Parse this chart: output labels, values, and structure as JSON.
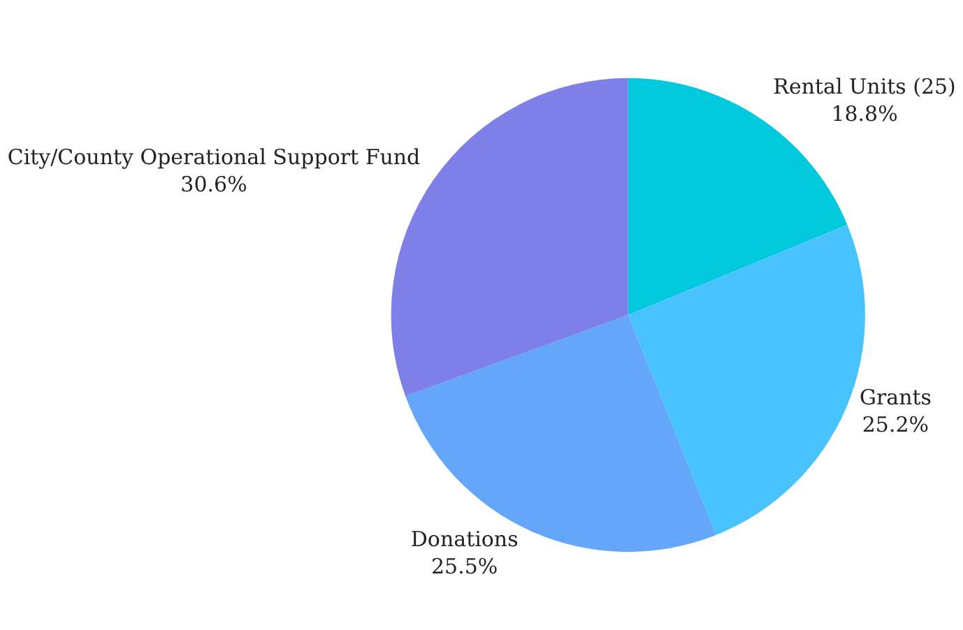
{
  "chart_data": {
    "type": "pie",
    "categories": [
      "Rental Units (25)",
      "Grants",
      "Donations",
      "City/County Operational Support Fund"
    ],
    "values": [
      18.8,
      25.2,
      25.5,
      30.6
    ],
    "value_labels": [
      "18.8%",
      "25.2%",
      "25.5%",
      "30.6%"
    ],
    "colors": [
      "#00c9de",
      "#48c3fe",
      "#63a6fa",
      "#7e80e8"
    ],
    "legend": false
  }
}
